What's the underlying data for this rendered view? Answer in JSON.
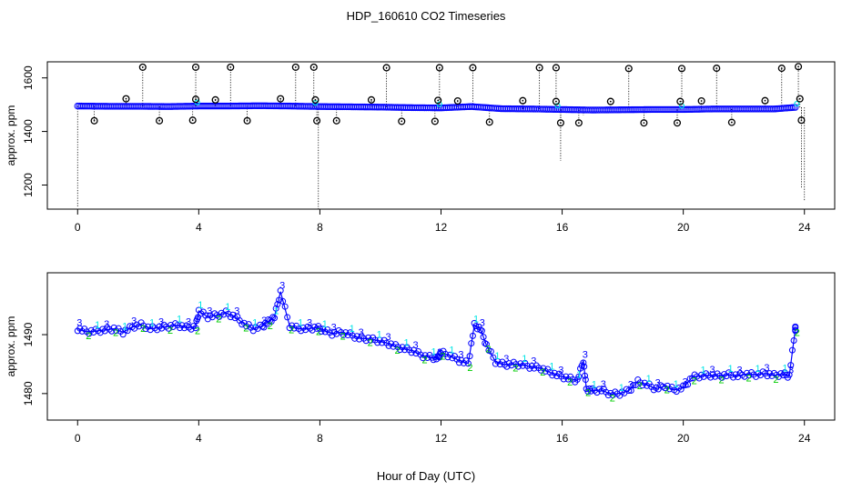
{
  "title": "HDP_160610  CO2 Timeseries",
  "xlabel": "Hour of Day (UTC)",
  "colors": {
    "background": "#ffffff",
    "axis": "#000000",
    "outlier_marker": "#000000",
    "series_3": "#0000ff",
    "series_2": "#00cc00",
    "series_1": "#00e5e5",
    "point_fill": "#1a1aff"
  },
  "chart_data": [
    {
      "type": "scatter",
      "panel": "top",
      "ylabel": "approx. ppm",
      "xlim": [
        -1.0,
        25.0
      ],
      "ylim": [
        1110,
        1660
      ],
      "xticks": [
        0,
        4,
        8,
        12,
        16,
        20,
        24
      ],
      "yticks": [
        1200,
        1400,
        1600
      ],
      "grid": false,
      "baseline_points": [
        [
          0,
          1495
        ],
        [
          1,
          1494
        ],
        [
          2,
          1494
        ],
        [
          3,
          1493
        ],
        [
          4,
          1495
        ],
        [
          5,
          1495
        ],
        [
          6,
          1496
        ],
        [
          7,
          1495
        ],
        [
          8,
          1493
        ],
        [
          9,
          1492
        ],
        [
          10,
          1491
        ],
        [
          11,
          1489
        ],
        [
          12,
          1488
        ],
        [
          13,
          1493
        ],
        [
          14,
          1485
        ],
        [
          15,
          1484
        ],
        [
          16,
          1482
        ],
        [
          17,
          1480
        ],
        [
          18,
          1481
        ],
        [
          19,
          1482
        ],
        [
          20,
          1482
        ],
        [
          21,
          1484
        ],
        [
          22,
          1484
        ],
        [
          23,
          1484
        ],
        [
          23.7,
          1490
        ]
      ],
      "high_outliers": [
        [
          2.15,
          1640
        ],
        [
          3.9,
          1640
        ],
        [
          5.05,
          1640
        ],
        [
          7.2,
          1640
        ],
        [
          7.8,
          1640
        ],
        [
          10.2,
          1638
        ],
        [
          11.95,
          1638
        ],
        [
          13.05,
          1638
        ],
        [
          15.25,
          1638
        ],
        [
          15.8,
          1638
        ],
        [
          18.2,
          1635
        ],
        [
          19.95,
          1635
        ],
        [
          21.1,
          1636
        ],
        [
          23.25,
          1636
        ],
        [
          23.8,
          1642
        ],
        [
          1.6,
          1522
        ],
        [
          3.9,
          1520
        ],
        [
          4.55,
          1518
        ],
        [
          6.7,
          1522
        ],
        [
          7.85,
          1518
        ],
        [
          9.7,
          1518
        ],
        [
          11.9,
          1516
        ],
        [
          12.55,
          1514
        ],
        [
          14.7,
          1515
        ],
        [
          15.8,
          1512
        ],
        [
          17.6,
          1512
        ],
        [
          19.9,
          1512
        ],
        [
          20.6,
          1514
        ],
        [
          22.7,
          1515
        ],
        [
          23.85,
          1522
        ]
      ],
      "low_outliers": [
        [
          0.55,
          1440
        ],
        [
          2.7,
          1440
        ],
        [
          3.8,
          1442
        ],
        [
          5.6,
          1440
        ],
        [
          7.9,
          1440
        ],
        [
          8.55,
          1440
        ],
        [
          10.7,
          1438
        ],
        [
          11.8,
          1438
        ],
        [
          13.6,
          1435
        ],
        [
          15.95,
          1432
        ],
        [
          16.55,
          1432
        ],
        [
          18.7,
          1432
        ],
        [
          19.8,
          1432
        ],
        [
          21.6,
          1434
        ],
        [
          23.9,
          1442
        ]
      ],
      "dips": [
        [
          0.0,
          1120
        ],
        [
          7.95,
          1105
        ],
        [
          15.95,
          1290
        ],
        [
          16.7,
          1460
        ],
        [
          23.9,
          1190
        ],
        [
          24.0,
          1140
        ]
      ]
    },
    {
      "type": "line",
      "panel": "bottom",
      "ylabel": "approx. ppm",
      "xlim": [
        -1.0,
        25.0
      ],
      "ylim": [
        1475.5,
        1500.5
      ],
      "xticks": [
        0,
        4,
        8,
        12,
        16,
        20,
        24
      ],
      "yticks": [
        1480,
        1490
      ],
      "grid": false,
      "series_markers": [
        "3",
        "2",
        "1"
      ],
      "x": [
        0.0,
        0.3,
        0.6,
        0.9,
        1.2,
        1.5,
        1.8,
        2.1,
        2.4,
        2.7,
        3.0,
        3.3,
        3.6,
        3.9,
        4.0,
        4.3,
        4.6,
        4.9,
        5.2,
        5.5,
        5.8,
        6.1,
        6.3,
        6.5,
        6.7,
        7.0,
        7.3,
        7.6,
        7.9,
        8.1,
        8.4,
        8.7,
        9.0,
        9.3,
        9.6,
        9.9,
        10.2,
        10.5,
        10.8,
        11.1,
        11.4,
        11.7,
        11.9,
        12.0,
        12.3,
        12.6,
        12.9,
        13.1,
        13.3,
        13.5,
        13.8,
        14.1,
        14.4,
        14.7,
        15.0,
        15.3,
        15.6,
        15.9,
        16.2,
        16.5,
        16.7,
        16.8,
        17.0,
        17.3,
        17.6,
        17.9,
        18.2,
        18.5,
        18.8,
        19.1,
        19.4,
        19.7,
        20.0,
        20.3,
        20.6,
        20.9,
        21.2,
        21.5,
        21.8,
        22.1,
        22.4,
        22.7,
        23.0,
        23.3,
        23.5,
        23.7
      ],
      "y": [
        1491.0,
        1490.5,
        1490.6,
        1490.8,
        1491.0,
        1490.4,
        1491.3,
        1491.7,
        1491.0,
        1491.2,
        1491.4,
        1491.6,
        1491.2,
        1491.3,
        1494.0,
        1493.0,
        1493.3,
        1493.7,
        1493.0,
        1491.8,
        1491.0,
        1491.4,
        1492.2,
        1493.0,
        1497.3,
        1491.5,
        1491.0,
        1491.0,
        1491.2,
        1490.8,
        1490.2,
        1490.4,
        1490.0,
        1489.4,
        1489.3,
        1489.0,
        1488.6,
        1488.0,
        1487.6,
        1487.2,
        1486.4,
        1486.1,
        1486.0,
        1487.0,
        1486.4,
        1485.6,
        1485.1,
        1491.6,
        1491.0,
        1488.2,
        1485.4,
        1484.9,
        1485.0,
        1484.9,
        1484.5,
        1484.3,
        1483.6,
        1483.0,
        1482.6,
        1482.2,
        1485.6,
        1480.8,
        1480.5,
        1480.6,
        1479.9,
        1480.0,
        1480.5,
        1482.0,
        1481.5,
        1480.8,
        1481.3,
        1480.6,
        1481.0,
        1482.8,
        1483.0,
        1483.1,
        1483.0,
        1483.2,
        1483.0,
        1483.3,
        1483.2,
        1483.4,
        1483.1,
        1483.3,
        1483.0,
        1491.0
      ]
    }
  ]
}
